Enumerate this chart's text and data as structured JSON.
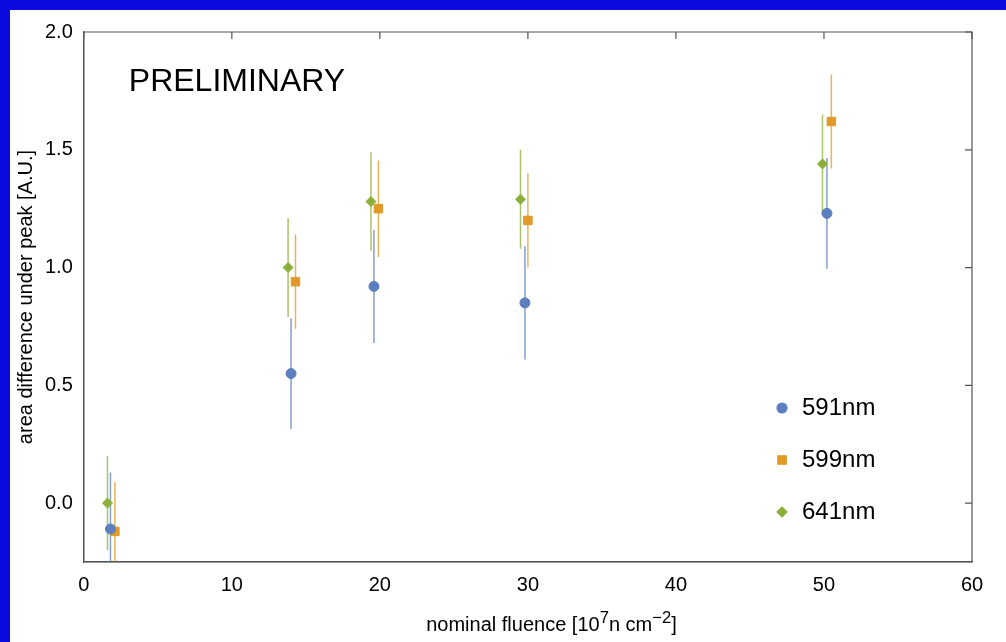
{
  "chart_data": {
    "type": "scatter",
    "xlabel": "nominal fluence [10$^{7}$n cm$^{−2}$]",
    "ylabel": "area difference under peak [A.U.]",
    "xlim": [
      0,
      60
    ],
    "xticks": [
      0,
      10,
      20,
      30,
      40,
      50,
      60
    ],
    "ylim": [
      -0.25,
      2.0
    ],
    "yticks": [
      {
        "value": 0,
        "label": "0.0"
      },
      {
        "value": 0.5,
        "label": "0.5"
      },
      {
        "value": 1,
        "label": "1.0"
      },
      {
        "value": 1.5,
        "label": "1.5"
      },
      {
        "value": 2,
        "label": "2.0"
      }
    ],
    "grid": false,
    "legend": "bottom right",
    "annotations": [
      {
        "text": "PRELIMINARY"
      }
    ],
    "series": [
      {
        "name": "591nm",
        "color": "#5b7fbf",
        "marker": "circle",
        "x": [
          1.8,
          14.0,
          19.6,
          29.8,
          50.2
        ],
        "values": [
          -0.11,
          0.55,
          0.92,
          0.85,
          1.23
        ],
        "errors": [
          0.24,
          0.235,
          0.24,
          0.24,
          0.235
        ]
      },
      {
        "name": "599nm",
        "color": "#e09a28",
        "marker": "square",
        "x": [
          2.1,
          14.3,
          19.9,
          30.0,
          50.5
        ],
        "values": [
          -0.12,
          0.94,
          1.25,
          1.2,
          1.62
        ],
        "errors": [
          0.21,
          0.2,
          0.205,
          0.2,
          0.2
        ]
      },
      {
        "name": "641nm",
        "color": "#8bb03a",
        "marker": "diamond",
        "x": [
          1.6,
          13.8,
          19.4,
          29.5,
          49.9
        ],
        "values": [
          0.0,
          1.0,
          1.28,
          1.29,
          1.44
        ],
        "errors": [
          0.2,
          0.21,
          0.21,
          0.21,
          0.21
        ]
      }
    ]
  }
}
